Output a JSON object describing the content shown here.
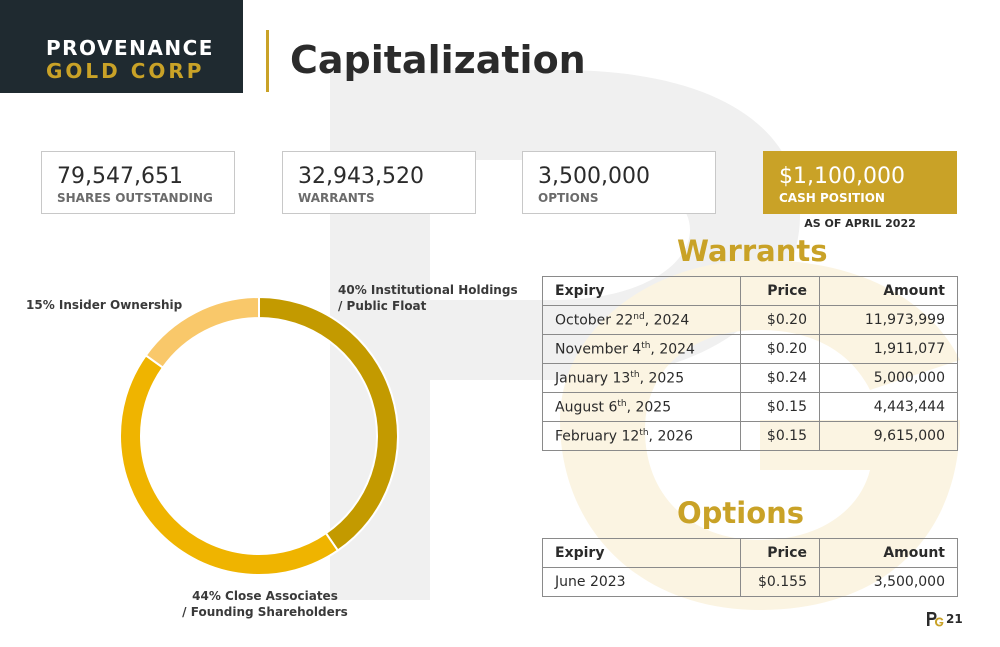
{
  "brand": {
    "line1": "PROVENANCE",
    "line2": "GOLD CORP"
  },
  "title": "Capitalization",
  "stats": [
    {
      "value": "79,547,651",
      "label": "SHARES OUTSTANDING"
    },
    {
      "value": "32,943,520",
      "label": "WARRANTS"
    },
    {
      "value": "3,500,000",
      "label": "OPTIONS"
    },
    {
      "value": "$1,100,000",
      "label": "CASH POSITION"
    }
  ],
  "as_of": "AS OF APRIL 2022",
  "ownership": {
    "slices": [
      {
        "label_1": "40% Institutional Holdings",
        "label_2": "/ Public Float",
        "percent": 40,
        "color": "#c39a00"
      },
      {
        "label_1": "44% Close Associates",
        "label_2": "/ Founding Shareholders",
        "percent": 44,
        "color": "#efb400"
      },
      {
        "label_1": "15% Insider Ownership",
        "label_2": "",
        "percent": 15,
        "color": "#f9c86a"
      }
    ]
  },
  "warrants": {
    "title": "Warrants",
    "headers": [
      "Expiry",
      "Price",
      "Amount"
    ],
    "rows": [
      {
        "date": "October 22",
        "sup": "nd",
        "year": ", 2024",
        "price": "$0.20",
        "amount": "11,973,999"
      },
      {
        "date": "November 4",
        "sup": "th",
        "year": ", 2024",
        "price": "$0.20",
        "amount": "1,911,077"
      },
      {
        "date": "January 13",
        "sup": "th",
        "year": ", 2025",
        "price": "$0.24",
        "amount": "5,000,000"
      },
      {
        "date": "August 6",
        "sup": "th",
        "year": ", 2025",
        "price": "$0.15",
        "amount": "4,443,444"
      },
      {
        "date": "February 12",
        "sup": "th",
        "year": ", 2026",
        "price": "$0.15",
        "amount": "9,615,000"
      }
    ]
  },
  "options": {
    "title": "Options",
    "headers": [
      "Expiry",
      "Price",
      "Amount"
    ],
    "rows": [
      {
        "date": "June 2023",
        "price": "$0.155",
        "amount": "3,500,000"
      }
    ]
  },
  "page_number": "21",
  "colors": {
    "gold": "#c9a227",
    "dark": "#1f2a30"
  }
}
